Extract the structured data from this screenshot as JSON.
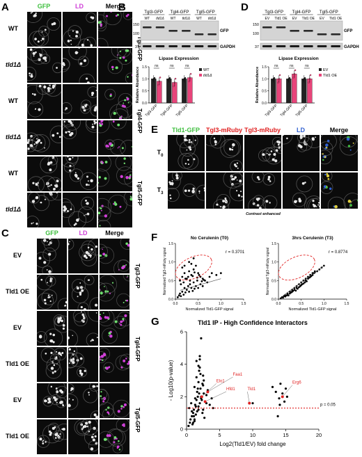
{
  "panels": {
    "A": "A",
    "B": "B",
    "C": "C",
    "D": "D",
    "E": "E",
    "F": "F",
    "G": "G"
  },
  "colors": {
    "gfp": "#3fbf3f",
    "ld": "#d040d8",
    "red": "#e02020",
    "blue": "#3060d0",
    "pink": "#e8447a",
    "dark": "#222222",
    "grey": "#8a8a8a"
  },
  "panel_a": {
    "columns": [
      "GFP",
      "LD",
      "Merge"
    ],
    "rows": [
      "WT",
      "tld1Δ",
      "WT",
      "tld1Δ",
      "WT",
      "tld1Δ"
    ],
    "groups": [
      "Tgl3-GFP",
      "Tgl4-GFP",
      "Tgl5-GFP"
    ]
  },
  "panel_c": {
    "columns": [
      "GFP",
      "LD",
      "Merge"
    ],
    "rows": [
      "EV",
      "Tld1 OE",
      "EV",
      "Tld1 OE",
      "EV",
      "Tld1 OE"
    ],
    "groups": [
      "Tgl3-GFP",
      "Tgl4-GFP",
      "Tgl5-GFP"
    ]
  },
  "panel_b": {
    "groups": [
      "Tgl3-GFP",
      "Tgl4-GFP",
      "Tgl5-GFP"
    ],
    "lanes": [
      "WT",
      "tld1Δ",
      "WT",
      "tld1Δ",
      "WT",
      "tld1Δ"
    ],
    "mw_top": [
      "150",
      "100"
    ],
    "mw_bottom": "37",
    "band_gfp": "GFP",
    "band_gapdh": "GAPDH"
  },
  "panel_d": {
    "groups": [
      "Tgl3-GFP",
      "Tgl4-GFP",
      "Tgl5-GFP"
    ],
    "lanes": [
      "EV",
      "Tld1 OE",
      "EV",
      "Tld1 OE",
      "EV",
      "Tld1 OE"
    ],
    "mw_top": [
      "150",
      "100"
    ],
    "mw_bottom": "37",
    "band_gfp": "GFP",
    "band_gapdh": "GAPDH"
  },
  "panel_e": {
    "columns": [
      "Tld1-GFP",
      "Tgl3-mRuby",
      "Tgl3-mRuby",
      "LD",
      "Merge"
    ],
    "rows": [
      "T0",
      "T3"
    ],
    "caption": "Contrast enhanced"
  },
  "chart_data": [
    {
      "type": "bar",
      "panel": "B",
      "title": "Lipase Expression",
      "ylabel": "Relative Abundance",
      "categories": [
        "Tgl3-GFP",
        "Tgl4-GFP",
        "Tgl5-GFP"
      ],
      "series": [
        {
          "name": "WT",
          "values": [
            1.0,
            1.0,
            1.0
          ]
        },
        {
          "name": "tld1Δ",
          "values": [
            0.9,
            0.85,
            1.05
          ]
        }
      ],
      "ylim": [
        0,
        1.5
      ],
      "yticks": [
        "0.0",
        "0.5",
        "1.0",
        "1.5"
      ],
      "significance": [
        "ns",
        "ns",
        "ns"
      ],
      "legend_placement": "top-right"
    },
    {
      "type": "bar",
      "panel": "D",
      "title": "Lipase Expression",
      "ylabel": "Relative Abundance",
      "categories": [
        "Tgl3-GFP",
        "Tgl4-GFP",
        "Tgl5-GFP"
      ],
      "series": [
        {
          "name": "EV",
          "values": [
            1.0,
            1.0,
            1.0
          ]
        },
        {
          "name": "Tld1 OE",
          "values": [
            1.0,
            1.2,
            1.0
          ]
        }
      ],
      "ylim": [
        0,
        1.5
      ],
      "yticks": [
        "0.0",
        "0.5",
        "1.0",
        "1.5"
      ],
      "significance": [
        "ns",
        "ns",
        "ns"
      ],
      "legend_placement": "top-right"
    },
    {
      "type": "scatter",
      "panel": "F",
      "title": "No Cerulenin (T0)",
      "xlabel": "Normalized Tld1-GFP signal",
      "ylabel": "Normalized Tgl3-mRuby signal",
      "xlim": [
        0,
        1.5
      ],
      "ylim": [
        0,
        1.5
      ],
      "xticks": [
        "0.0",
        "0.5",
        "1.0",
        "1.5"
      ],
      "yticks": [
        "0.0",
        "0.5",
        "1.0",
        "1.5"
      ],
      "annotation": "r = 0.3701",
      "x": [
        0.05,
        0.08,
        0.1,
        0.12,
        0.15,
        0.18,
        0.2,
        0.22,
        0.25,
        0.28,
        0.3,
        0.32,
        0.35,
        0.38,
        0.4,
        0.42,
        0.45,
        0.48,
        0.5,
        0.55,
        0.6,
        0.65,
        0.7,
        0.1,
        0.15,
        0.2,
        0.25,
        0.3,
        0.35,
        0.4,
        0.45,
        0.5,
        0.55,
        0.6,
        0.12,
        0.18,
        0.22,
        0.28,
        0.32,
        0.38,
        0.42,
        0.48,
        0.52,
        0.58,
        0.62,
        0.75,
        0.8,
        0.9,
        1.0,
        0.3,
        0.35,
        0.4,
        0.2,
        0.15
      ],
      "y": [
        0.05,
        0.1,
        0.15,
        0.08,
        0.2,
        0.12,
        0.3,
        0.18,
        0.25,
        0.35,
        0.2,
        0.4,
        0.3,
        0.22,
        0.45,
        0.28,
        0.35,
        0.5,
        0.3,
        0.4,
        0.35,
        0.5,
        0.45,
        0.5,
        0.6,
        0.7,
        0.55,
        0.75,
        0.65,
        0.8,
        0.9,
        0.7,
        0.6,
        0.55,
        0.4,
        0.45,
        0.55,
        0.6,
        0.5,
        0.62,
        0.72,
        0.58,
        0.65,
        0.48,
        0.52,
        0.6,
        0.7,
        0.65,
        0.7,
        1.0,
        0.95,
        1.1,
        0.9,
        0.85
      ]
    },
    {
      "type": "scatter",
      "panel": "F",
      "title": "3hrs Cerulenin (T3)",
      "xlabel": "Normalized Tld1-GFP signal",
      "ylabel": "Normalized Tgl3-mRuby signal",
      "xlim": [
        0,
        1.5
      ],
      "ylim": [
        0,
        1.5
      ],
      "xticks": [
        "0.0",
        "0.5",
        "1.0",
        "1.5"
      ],
      "yticks": [
        "0.0",
        "0.5",
        "1.0",
        "1.5"
      ],
      "annotation": "r = 0.8774",
      "x": [
        0.05,
        0.08,
        0.1,
        0.12,
        0.15,
        0.18,
        0.2,
        0.22,
        0.25,
        0.28,
        0.3,
        0.32,
        0.35,
        0.38,
        0.4,
        0.42,
        0.45,
        0.48,
        0.5,
        0.52,
        0.55,
        0.58,
        0.6,
        0.62,
        0.65,
        0.68,
        0.7,
        0.72,
        0.75,
        0.78,
        0.8,
        0.85,
        0.9,
        0.95,
        1.0,
        0.15,
        0.2,
        0.25,
        0.3,
        0.35,
        0.4,
        0.45,
        0.5,
        0.55,
        0.6,
        0.65,
        0.7,
        0.75,
        0.8
      ],
      "y": [
        0.02,
        0.05,
        0.04,
        0.08,
        0.07,
        0.1,
        0.12,
        0.1,
        0.15,
        0.18,
        0.2,
        0.22,
        0.25,
        0.23,
        0.3,
        0.28,
        0.32,
        0.35,
        0.38,
        0.4,
        0.42,
        0.45,
        0.5,
        0.48,
        0.55,
        0.58,
        0.6,
        0.62,
        0.65,
        0.7,
        0.72,
        0.75,
        0.8,
        0.85,
        0.9,
        0.1,
        0.15,
        0.2,
        0.25,
        0.3,
        0.35,
        0.4,
        0.45,
        0.5,
        0.55,
        0.6,
        0.65,
        0.7,
        0.75
      ]
    },
    {
      "type": "scatter",
      "panel": "G",
      "title": "Tld1 IP - High Confidence Interactors",
      "xlabel": "Log2(Tld1/EV) fold change",
      "ylabel": "- Log10(p-value)",
      "xlim": [
        0,
        20
      ],
      "ylim": [
        0,
        6
      ],
      "xticks": [
        "0",
        "5",
        "10",
        "15",
        "20"
      ],
      "yticks": [
        "0",
        "2",
        "4",
        "6"
      ],
      "threshold_label": "p = 0.05",
      "threshold": 1.3,
      "highlighted": [
        {
          "label": "Elo1",
          "x": 2.3,
          "y": 2.0
        },
        {
          "label": "Faa1",
          "x": 3.2,
          "y": 2.3
        },
        {
          "label": "Hfd1",
          "x": 2.8,
          "y": 1.7
        },
        {
          "label": "Tld1",
          "x": 9.5,
          "y": 1.6
        },
        {
          "label": "Erg6",
          "x": 14.5,
          "y": 2.0
        }
      ],
      "x": [
        0.3,
        0.5,
        0.6,
        0.8,
        1.0,
        1.1,
        1.2,
        1.3,
        1.4,
        1.5,
        1.6,
        1.7,
        1.8,
        1.9,
        2.0,
        2.1,
        2.2,
        2.4,
        2.5,
        2.6,
        2.8,
        3.0,
        3.2,
        3.5,
        3.8,
        4.0,
        0.4,
        0.7,
        0.9,
        1.2,
        1.5,
        1.8,
        2.1,
        2.4,
        2.7,
        1.0,
        1.3,
        1.6,
        1.9,
        2.2,
        2.5,
        0.8,
        1.1,
        1.4,
        1.7,
        2.0,
        2.3,
        2.6,
        3.0,
        1.5,
        2.0,
        2.5,
        1.2,
        1.8,
        2.2,
        13.0,
        13.5,
        14.0,
        14.2,
        14.5,
        14.8,
        15.0,
        15.2,
        14.1,
        13.8,
        10.0,
        1.8,
        2.0
      ],
      "y": [
        0.2,
        0.4,
        0.6,
        0.8,
        1.0,
        1.2,
        0.5,
        1.5,
        0.9,
        1.8,
        1.1,
        2.0,
        1.4,
        2.2,
        1.6,
        2.5,
        1.9,
        2.8,
        1.2,
        3.0,
        1.7,
        2.1,
        2.4,
        1.5,
        1.9,
        1.3,
        1.3,
        1.6,
        0.3,
        2.6,
        3.2,
        2.9,
        3.4,
        1.0,
        0.7,
        0.4,
        1.9,
        2.3,
        3.6,
        2.0,
        2.7,
        1.1,
        0.8,
        1.4,
        2.5,
        3.8,
        1.8,
        2.2,
        1.6,
        4.2,
        4.5,
        3.3,
        0.6,
        1.2,
        5.6,
        2.6,
        2.3,
        1.9,
        2.8,
        2.2,
        1.7,
        2.5,
        2.0,
        1.5,
        0.8,
        1.6,
        3.9,
        4.3
      ]
    }
  ]
}
